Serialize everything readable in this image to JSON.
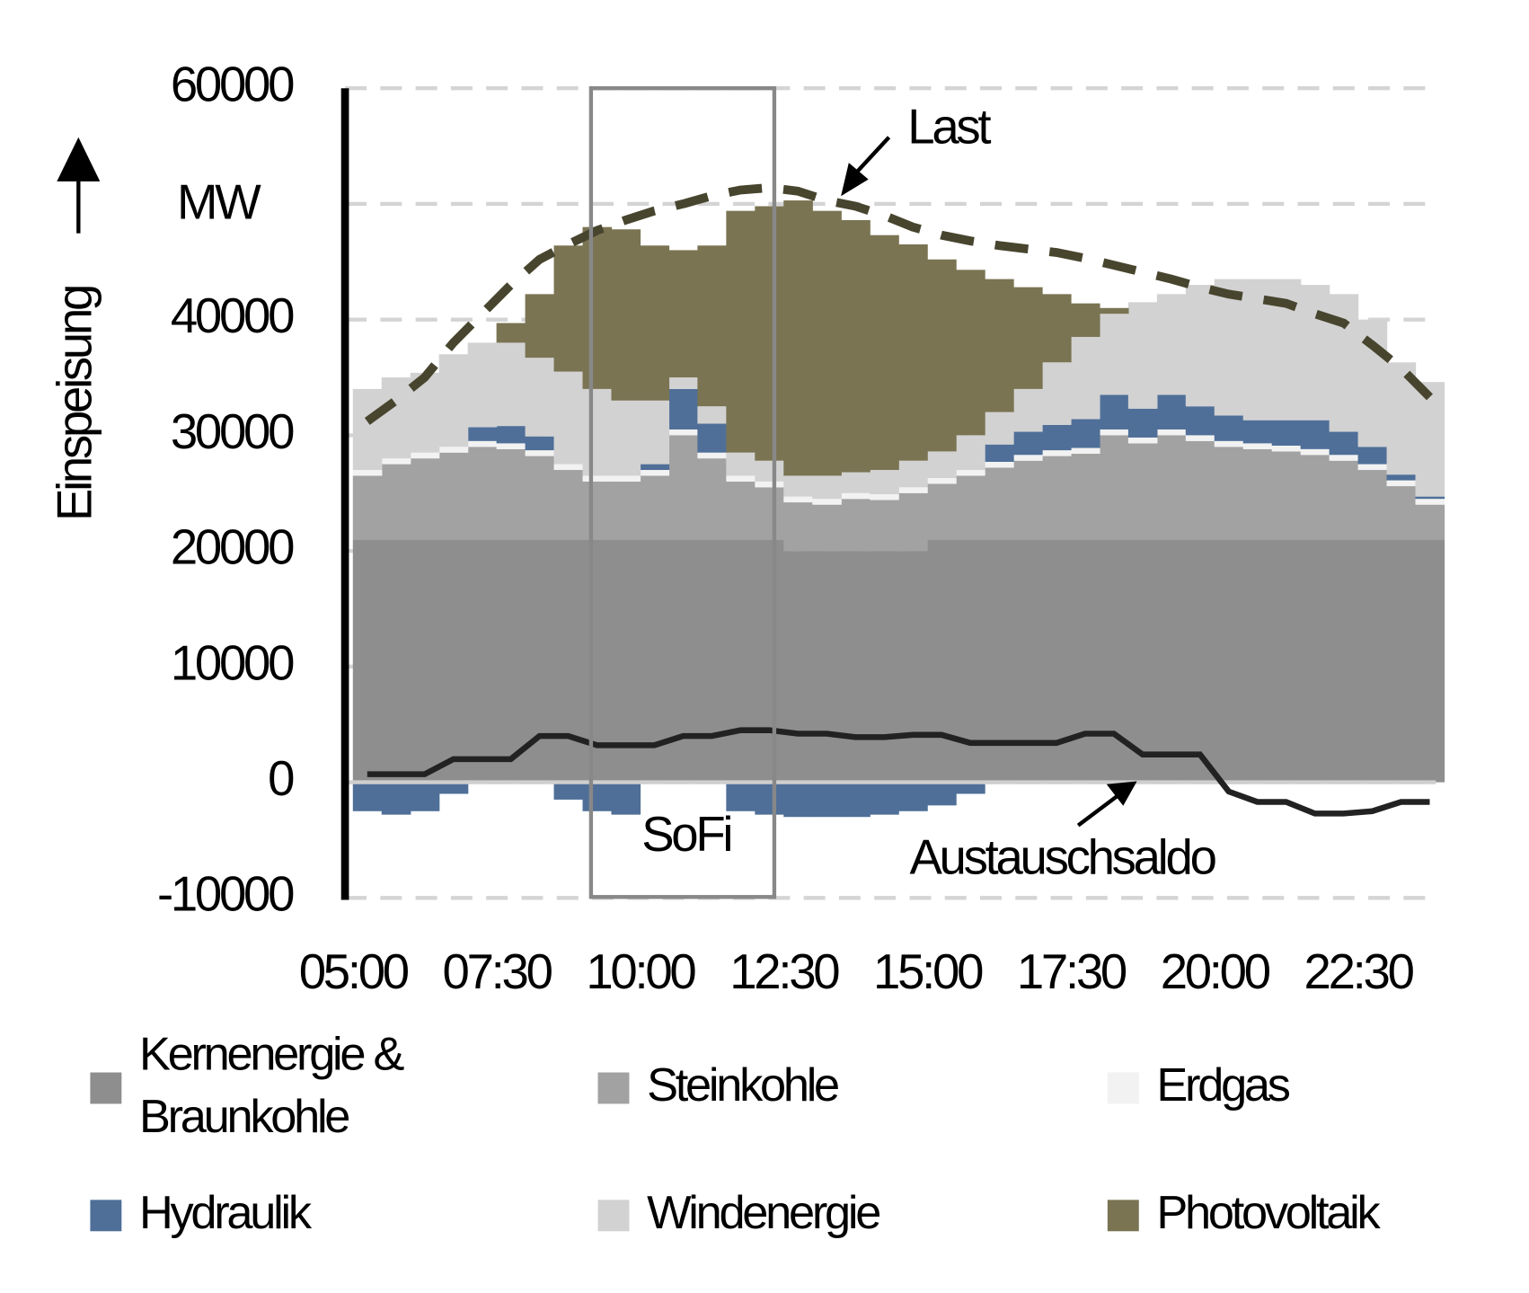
{
  "chart_data": {
    "type": "stacked-area",
    "y_label": "Einspeisung",
    "y_unit": "MW",
    "categories": [
      "05:00",
      null,
      null,
      null,
      null,
      "07:30",
      null,
      null,
      null,
      null,
      "10:00",
      null,
      null,
      null,
      null,
      "12:30",
      null,
      null,
      null,
      null,
      "15:00",
      null,
      null,
      null,
      null,
      "17:30",
      null,
      null,
      null,
      null,
      "20:00",
      null,
      null,
      null,
      null,
      "22:30",
      null,
      null
    ],
    "series": [
      {
        "name": "Kernenergie & Braunkohle",
        "color": "#8e8e8e",
        "values": [
          21000,
          21000,
          21000,
          21000,
          21000,
          21000,
          21000,
          21000,
          21000,
          21000,
          21000,
          21000,
          21000,
          21000,
          21000,
          20000,
          20000,
          20000,
          20000,
          20000,
          21000,
          21000,
          21000,
          21000,
          21000,
          21000,
          21000,
          21000,
          21000,
          21000,
          21000,
          21000,
          21000,
          21000,
          21000,
          21000,
          21000,
          21000
        ]
      },
      {
        "name": "Steinkohle",
        "color": "#a2a2a2",
        "values": [
          5500,
          6500,
          7000,
          7500,
          8000,
          7800,
          7200,
          6000,
          5000,
          5000,
          5500,
          9000,
          7000,
          5000,
          4500,
          4200,
          4000,
          4500,
          4400,
          5000,
          4800,
          5500,
          6200,
          6800,
          7200,
          7400,
          9000,
          8300,
          9000,
          8500,
          8000,
          7800,
          7600,
          7300,
          6800,
          6000,
          4600,
          3000
        ]
      },
      {
        "name": "Erdgas",
        "color": "#f2f2f2",
        "values": [
          500,
          500,
          500,
          500,
          500,
          500,
          500,
          500,
          500,
          500,
          500,
          500,
          500,
          500,
          500,
          500,
          500,
          500,
          500,
          500,
          500,
          500,
          500,
          500,
          500,
          500,
          500,
          500,
          500,
          500,
          500,
          500,
          500,
          500,
          500,
          500,
          500,
          500
        ]
      },
      {
        "name": "Hydraulik",
        "color": "#4f6f98",
        "values": [
          -2500,
          -2800,
          -2500,
          -1000,
          1200,
          1500,
          1200,
          -1500,
          -2500,
          -2800,
          500,
          3500,
          2500,
          -2500,
          -2800,
          -3000,
          -3000,
          -3000,
          -2800,
          -2500,
          -2000,
          -1000,
          1500,
          2000,
          2200,
          2500,
          3000,
          2500,
          3000,
          2500,
          2200,
          2000,
          2200,
          2500,
          2000,
          1500,
          500,
          200
        ]
      },
      {
        "name": "Windenergie",
        "color": "#d2d2d2",
        "values": [
          7000,
          7000,
          6900,
          8000,
          7300,
          7200,
          6800,
          8000,
          7500,
          6500,
          5500,
          1000,
          1500,
          2000,
          1800,
          1800,
          2000,
          1800,
          2100,
          2300,
          2300,
          3000,
          2800,
          3700,
          5400,
          7100,
          7000,
          9200,
          8700,
          10500,
          11800,
          12200,
          12200,
          11700,
          11900,
          11000,
          9700,
          9900
        ]
      },
      {
        "name": "Photovoltaik",
        "color": "#7a7453",
        "values": [
          0,
          0,
          0,
          0,
          0,
          1700,
          5500,
          10900,
          14000,
          14800,
          13400,
          11000,
          13900,
          20900,
          22000,
          23800,
          22900,
          21800,
          20300,
          18700,
          16600,
          14300,
          11500,
          8800,
          5900,
          2900,
          500,
          0,
          0,
          0,
          0,
          0,
          0,
          0,
          0,
          0,
          0,
          0
        ]
      }
    ],
    "lines": [
      {
        "name": "Last",
        "color": "#48452f",
        "dashed": true,
        "values": [
          31200,
          33000,
          35000,
          38000,
          40500,
          43000,
          45200,
          46500,
          47700,
          48600,
          49400,
          50000,
          50700,
          51200,
          51400,
          51100,
          50300,
          49800,
          49000,
          48000,
          47300,
          46800,
          46400,
          46100,
          45800,
          45300,
          44700,
          44100,
          43500,
          42800,
          42200,
          41800,
          41400,
          40500,
          39700,
          37800,
          35800,
          33300
        ]
      },
      {
        "name": "Austauschsaldo",
        "color": "#222222",
        "dashed": false,
        "values": [
          700,
          700,
          700,
          2000,
          2000,
          2000,
          4000,
          4000,
          3200,
          3200,
          3200,
          4000,
          4000,
          4500,
          4500,
          4200,
          4200,
          3900,
          3900,
          4100,
          4100,
          3400,
          3400,
          3400,
          3400,
          4200,
          4200,
          2400,
          2400,
          2400,
          -800,
          -1700,
          -1700,
          -2700,
          -2700,
          -2500,
          -1700,
          -1700
        ]
      }
    ],
    "annotations": [
      "SoFi"
    ],
    "ylim": [
      -10000,
      60000
    ],
    "yticks": [
      -10000,
      0,
      10000,
      20000,
      30000,
      40000,
      50000,
      60000
    ],
    "ytick_labels_shown": [
      -10000,
      0,
      10000,
      20000,
      30000,
      40000,
      60000
    ],
    "grid": true
  }
}
